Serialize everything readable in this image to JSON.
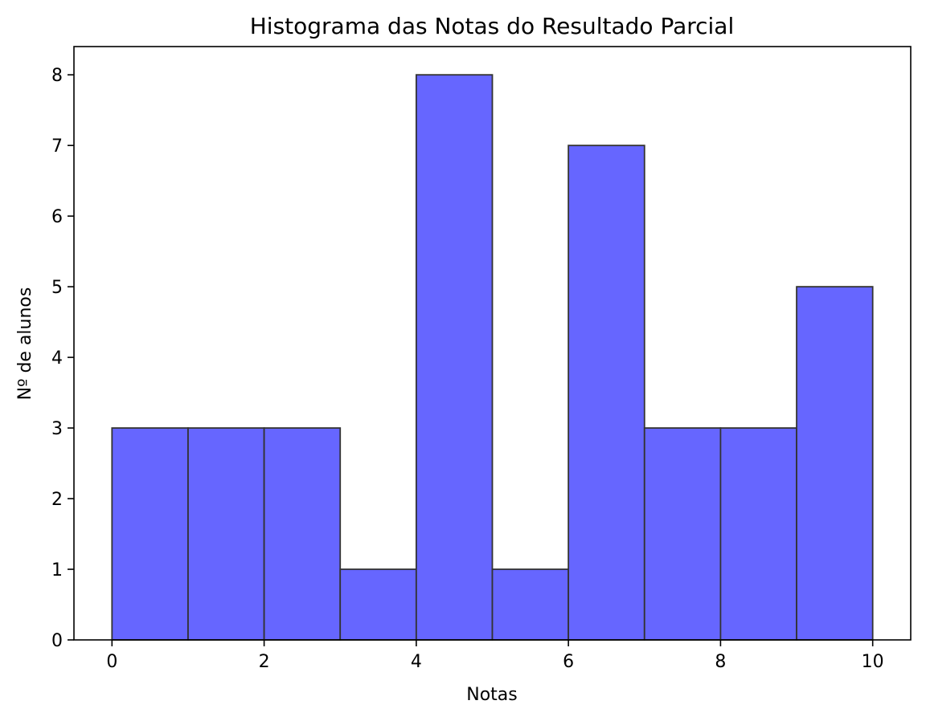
{
  "chart_data": {
    "type": "bar",
    "title": "Histograma das Notas do Resultado Parcial",
    "xlabel": "Notas",
    "ylabel": "Nº de alunos",
    "bins": [
      {
        "start": 0,
        "end": 1,
        "count": 3
      },
      {
        "start": 1,
        "end": 2,
        "count": 3
      },
      {
        "start": 2,
        "end": 3,
        "count": 3
      },
      {
        "start": 3,
        "end": 4,
        "count": 1
      },
      {
        "start": 4,
        "end": 5,
        "count": 8
      },
      {
        "start": 5,
        "end": 6,
        "count": 1
      },
      {
        "start": 6,
        "end": 7,
        "count": 7
      },
      {
        "start": 7,
        "end": 8,
        "count": 3
      },
      {
        "start": 8,
        "end": 9,
        "count": 3
      },
      {
        "start": 9,
        "end": 10,
        "count": 5
      }
    ],
    "xlim": [
      -0.5,
      10.5
    ],
    "ylim": [
      0,
      8.4
    ],
    "xticks": [
      "0",
      "2",
      "4",
      "6",
      "8",
      "10"
    ],
    "yticks": [
      "0",
      "1",
      "2",
      "3",
      "4",
      "5",
      "6",
      "7",
      "8"
    ],
    "grid": false,
    "colors": {
      "bar_fill": "#6666ff",
      "bar_edge": "#333333"
    }
  }
}
